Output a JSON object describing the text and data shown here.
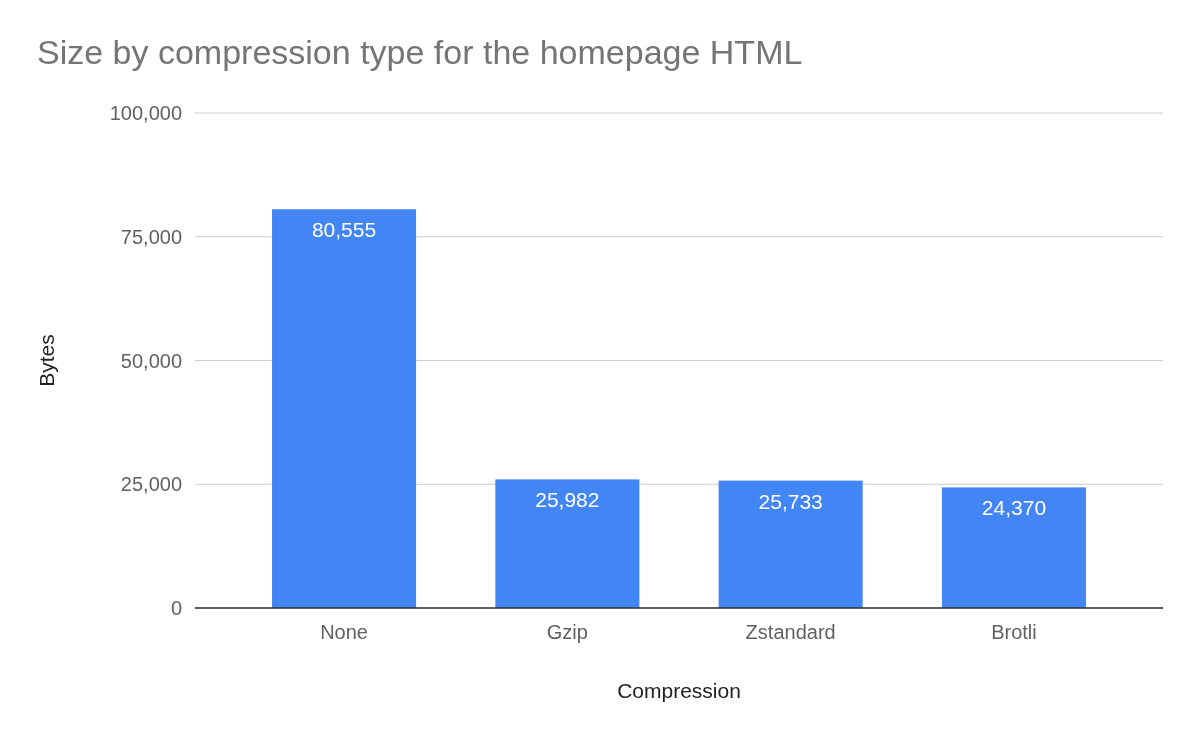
{
  "chart_data": {
    "type": "bar",
    "title": "Size by compression type for the homepage HTML",
    "xlabel": "Compression",
    "ylabel": "Bytes",
    "categories": [
      "None",
      "Gzip",
      "Zstandard",
      "Brotli"
    ],
    "values": [
      80555,
      25982,
      25733,
      24370
    ],
    "color": "#4285f4",
    "ylim": [
      0,
      100000
    ],
    "yticks": [
      {
        "value": 0,
        "label": "0"
      },
      {
        "value": 25000,
        "label": "25,000"
      },
      {
        "value": 50000,
        "label": "50,000"
      },
      {
        "value": 75000,
        "label": "75,000"
      },
      {
        "value": 100000,
        "label": "100,000"
      }
    ],
    "value_labels": [
      "80,555",
      "25,982",
      "25,733",
      "24,370"
    ],
    "grid": true
  }
}
